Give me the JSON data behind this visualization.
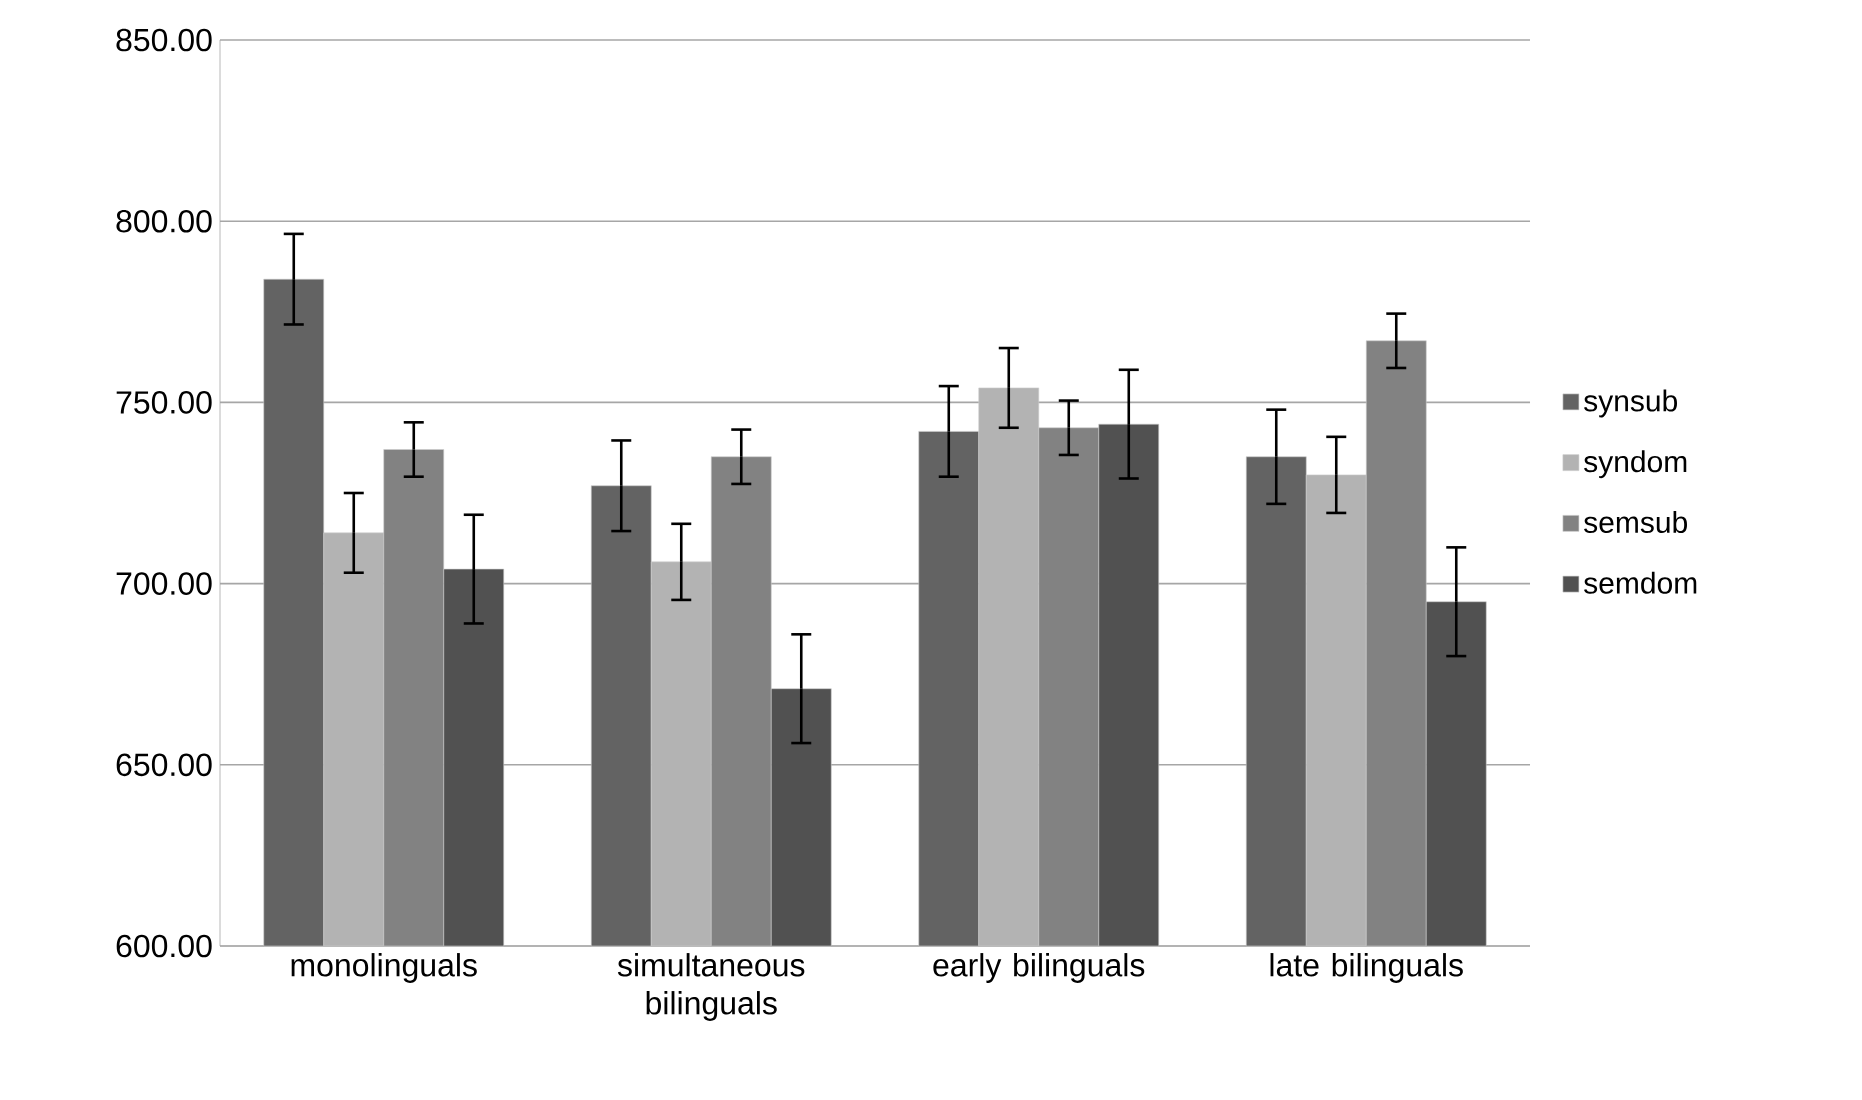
{
  "chart_data": {
    "type": "bar",
    "categories": [
      "monolinguals",
      "simultaneous bilinguals",
      "early bilinguals",
      "late bilinguals"
    ],
    "series": [
      {
        "name": "synsub",
        "color": "#636363",
        "values": [
          784,
          727,
          742,
          735
        ],
        "errors": [
          12.5,
          12.5,
          12.5,
          13
        ]
      },
      {
        "name": "syndom",
        "color": "#b3b3b3",
        "values": [
          714,
          706,
          754,
          730
        ],
        "errors": [
          11,
          10.5,
          11,
          10.5
        ]
      },
      {
        "name": "semsub",
        "color": "#828282",
        "values": [
          737,
          735,
          743,
          767
        ],
        "errors": [
          7.5,
          7.5,
          7.5,
          7.5
        ]
      },
      {
        "name": "semdom",
        "color": "#515151",
        "values": [
          704,
          671,
          744,
          695
        ],
        "errors": [
          15,
          15,
          15,
          15
        ]
      }
    ],
    "ylim": [
      600,
      850
    ],
    "yticks": [
      {
        "value": 600,
        "label": "600.00"
      },
      {
        "value": 650,
        "label": "650.00"
      },
      {
        "value": 700,
        "label": "700.00"
      },
      {
        "value": 750,
        "label": "750.00"
      },
      {
        "value": 800,
        "label": "800.00"
      },
      {
        "value": 850,
        "label": "850.00"
      }
    ],
    "grid": "y",
    "legend": "right"
  }
}
